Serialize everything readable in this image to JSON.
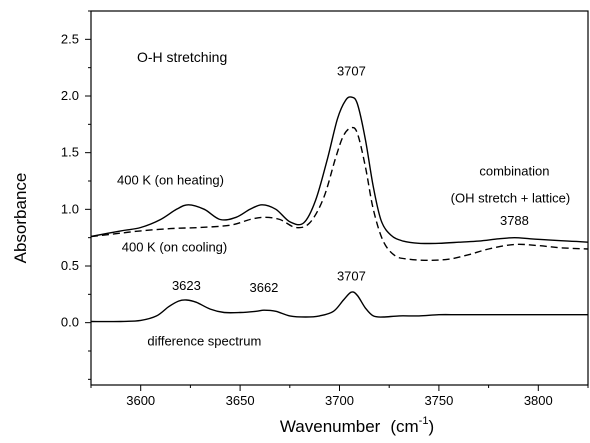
{
  "chart_data": {
    "type": "line",
    "title": "O-H stretching",
    "xlabel": "Wavenumber",
    "xlabel_unit": "(cm",
    "xlabel_unit_sup": "-1",
    "xlabel_unit_close": ")",
    "ylabel": "Absorbance",
    "xlim": [
      3575,
      3825
    ],
    "ylim": [
      -0.55,
      2.75
    ],
    "grid": false,
    "x_ticks": [
      3600,
      3650,
      3700,
      3750,
      3800
    ],
    "x_tick_labels": [
      "3600",
      "3650",
      "3700",
      "3750",
      "3800"
    ],
    "y_ticks": [
      0.0,
      0.5,
      1.0,
      1.5,
      2.0,
      2.5
    ],
    "y_tick_labels": [
      "0.0",
      "0.5",
      "1.0",
      "1.5",
      "2.0",
      "2.5"
    ],
    "series": [
      {
        "name": "400 K (on heating)",
        "style": "solid",
        "x": [
          3575,
          3590,
          3600,
          3610,
          3618,
          3624,
          3632,
          3640,
          3648,
          3655,
          3661,
          3668,
          3675,
          3682,
          3688,
          3694,
          3699,
          3703,
          3706,
          3709,
          3713,
          3717,
          3721,
          3726,
          3732,
          3740,
          3750,
          3760,
          3770,
          3780,
          3788,
          3796,
          3805,
          3815,
          3825
        ],
        "y": [
          0.76,
          0.81,
          0.84,
          0.91,
          1.0,
          1.04,
          1.0,
          0.91,
          0.93,
          1.0,
          1.04,
          1.0,
          0.89,
          0.88,
          1.08,
          1.45,
          1.8,
          1.96,
          1.99,
          1.93,
          1.62,
          1.2,
          0.9,
          0.77,
          0.72,
          0.7,
          0.7,
          0.71,
          0.72,
          0.74,
          0.75,
          0.74,
          0.73,
          0.72,
          0.71
        ]
      },
      {
        "name": "400 K (on cooling)",
        "style": "dashed",
        "x": [
          3575,
          3590,
          3600,
          3615,
          3630,
          3645,
          3655,
          3662,
          3670,
          3678,
          3685,
          3692,
          3698,
          3702,
          3706,
          3709,
          3713,
          3717,
          3722,
          3728,
          3735,
          3745,
          3755,
          3765,
          3775,
          3788,
          3800,
          3812,
          3825
        ],
        "y": [
          0.76,
          0.79,
          0.81,
          0.83,
          0.84,
          0.86,
          0.91,
          0.93,
          0.91,
          0.84,
          0.88,
          1.1,
          1.45,
          1.65,
          1.72,
          1.67,
          1.38,
          1.0,
          0.72,
          0.59,
          0.56,
          0.55,
          0.56,
          0.6,
          0.65,
          0.69,
          0.68,
          0.66,
          0.65
        ]
      },
      {
        "name": "difference spectrum",
        "style": "solid",
        "x": [
          3575,
          3590,
          3600,
          3608,
          3614,
          3619,
          3623,
          3628,
          3635,
          3642,
          3650,
          3658,
          3662,
          3668,
          3675,
          3683,
          3690,
          3697,
          3702,
          3706,
          3709,
          3713,
          3717,
          3722,
          3730,
          3740,
          3750,
          3760,
          3775,
          3790,
          3805,
          3825
        ],
        "y": [
          0.01,
          0.01,
          0.02,
          0.06,
          0.14,
          0.19,
          0.2,
          0.18,
          0.12,
          0.09,
          0.09,
          0.1,
          0.11,
          0.1,
          0.06,
          0.05,
          0.06,
          0.1,
          0.2,
          0.27,
          0.24,
          0.13,
          0.06,
          0.05,
          0.06,
          0.06,
          0.07,
          0.07,
          0.07,
          0.07,
          0.07,
          0.07
        ]
      }
    ],
    "annotations": [
      {
        "id": "label-heating",
        "text": "400 K (on heating)",
        "x": 3615,
        "y": 1.22,
        "anchor": "middle"
      },
      {
        "id": "label-cooling",
        "text": "400 K (on cooling)",
        "x": 3617,
        "y": 0.63,
        "anchor": "middle"
      },
      {
        "id": "label-3707-top",
        "text": "3707",
        "x": 3706,
        "y": 2.18,
        "anchor": "middle"
      },
      {
        "id": "label-combination-1",
        "text": "combination",
        "x": 3788,
        "y": 1.3,
        "anchor": "middle"
      },
      {
        "id": "label-combination-2",
        "text": "(OH stretch + lattice)",
        "x": 3786,
        "y": 1.06,
        "anchor": "middle"
      },
      {
        "id": "label-3788",
        "text": "3788",
        "x": 3788,
        "y": 0.86,
        "anchor": "middle"
      },
      {
        "id": "label-3623",
        "text": "3623",
        "x": 3623,
        "y": 0.29,
        "anchor": "middle"
      },
      {
        "id": "label-3662",
        "text": "3662",
        "x": 3662,
        "y": 0.27,
        "anchor": "middle"
      },
      {
        "id": "label-3707-bottom",
        "text": "3707",
        "x": 3706,
        "y": 0.37,
        "anchor": "middle"
      },
      {
        "id": "label-difference",
        "text": "difference spectrum",
        "x": 3632,
        "y": -0.2,
        "anchor": "middle"
      }
    ]
  }
}
